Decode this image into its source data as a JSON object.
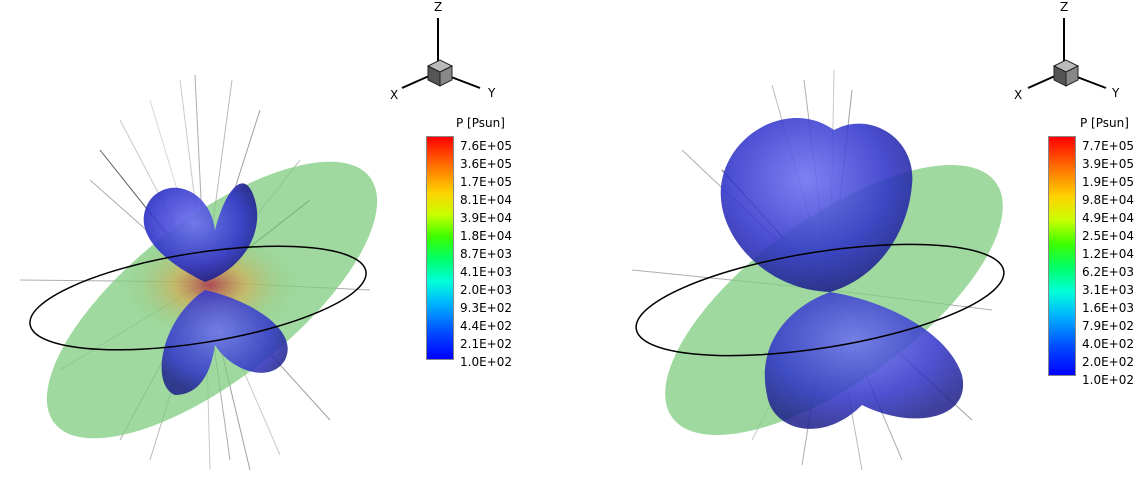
{
  "axes": {
    "z": "Z",
    "x": "X",
    "y": "Y"
  },
  "panels": [
    {
      "legend": {
        "title": "P [Psun]",
        "ticks": [
          "7.6E+05",
          "3.6E+05",
          "1.7E+05",
          "8.1E+04",
          "3.9E+04",
          "1.8E+04",
          "8.7E+03",
          "4.1E+03",
          "2.0E+03",
          "9.3E+02",
          "4.4E+02",
          "2.1E+02",
          "1.0E+02"
        ]
      }
    },
    {
      "legend": {
        "title": "P [Psun]",
        "ticks": [
          "7.7E+05",
          "3.9E+05",
          "1.9E+05",
          "9.8E+04",
          "4.9E+04",
          "2.5E+04",
          "1.2E+04",
          "6.2E+03",
          "3.1E+03",
          "1.6E+03",
          "7.9E+02",
          "4.0E+02",
          "2.0E+02",
          "1.0E+02"
        ]
      }
    }
  ],
  "colors": {
    "disk": "#7fcc7f",
    "lobe": "#2f33c8",
    "orbit": "#000000"
  }
}
